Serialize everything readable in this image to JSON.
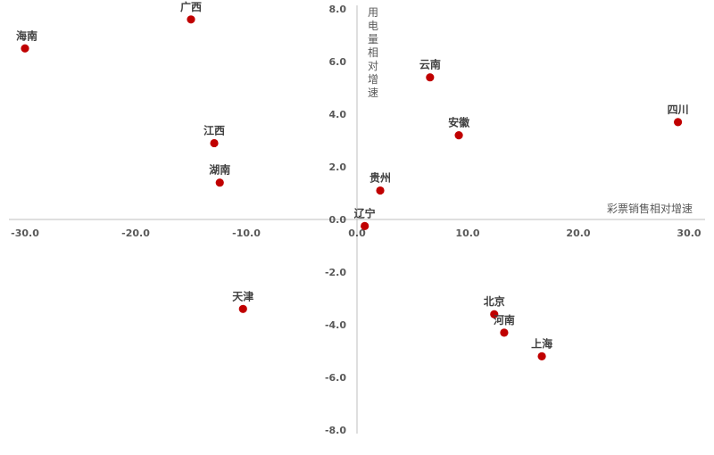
{
  "chart_data": {
    "type": "scatter",
    "xlabel": "彩票销售相对增速",
    "ylabel": "用电量相对增速",
    "xlim": [
      -30,
      30
    ],
    "ylim": [
      -8,
      8
    ],
    "x_ticks": [
      "-30.0",
      "-20.0",
      "-10.0",
      "0.0",
      "10.0",
      "20.0",
      "30.0"
    ],
    "y_ticks": [
      "8.0",
      "6.0",
      "4.0",
      "2.0",
      "0.0",
      "-2.0",
      "-4.0",
      "-6.0",
      "-8.0"
    ],
    "marker_color": "#c00000",
    "points": [
      {
        "label": "海南",
        "x": -30.0,
        "y": 6.5
      },
      {
        "label": "广西",
        "x": -15.0,
        "y": 7.6
      },
      {
        "label": "江西",
        "x": -12.9,
        "y": 2.9
      },
      {
        "label": "湖南",
        "x": -12.4,
        "y": 1.4
      },
      {
        "label": "天津",
        "x": -10.3,
        "y": -3.4
      },
      {
        "label": "云南",
        "x": 6.6,
        "y": 5.4
      },
      {
        "label": "安徽",
        "x": 9.2,
        "y": 3.2
      },
      {
        "label": "贵州",
        "x": 2.1,
        "y": 1.1
      },
      {
        "label": "辽宁",
        "x": 0.7,
        "y": -0.25
      },
      {
        "label": "北京",
        "x": 12.4,
        "y": -3.6
      },
      {
        "label": "河南",
        "x": 13.3,
        "y": -4.3
      },
      {
        "label": "上海",
        "x": 16.7,
        "y": -5.2
      },
      {
        "label": "四川",
        "x": 29.0,
        "y": 3.7
      }
    ]
  }
}
